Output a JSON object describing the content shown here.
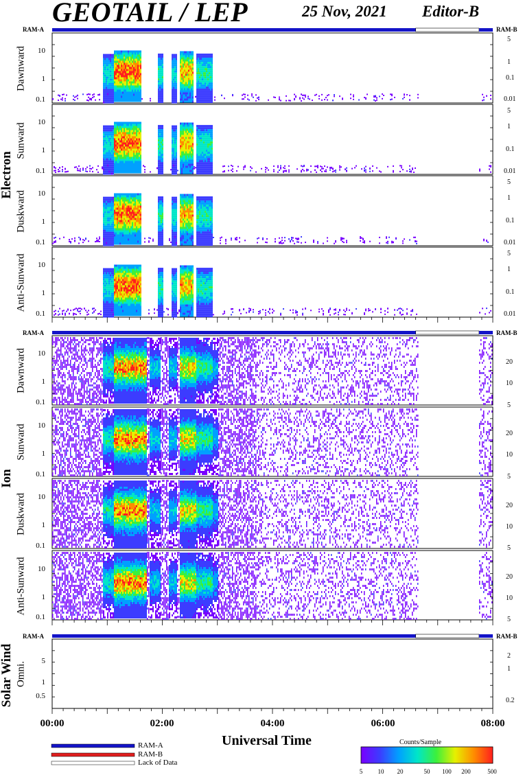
{
  "header": {
    "title": "GEOTAIL / LEP",
    "date": "25 Nov, 2021",
    "editor": "Editor-B"
  },
  "ram_labels": {
    "left": "RAM-A",
    "right": "RAM-B"
  },
  "groups": {
    "electron": "Electron",
    "ion": "Ion",
    "solar_wind": "Solar Wind"
  },
  "panel_labels": {
    "e1": "Dawnward",
    "e2": "Sunward",
    "e3": "Duskward",
    "e4": "Anti-Sunward",
    "i1": "Dawnward",
    "i2": "Sunward",
    "i3": "Duskward",
    "i4": "Anti-Sunward",
    "sw": "Omni."
  },
  "left_ticks": {
    "electron": [
      "10",
      "1",
      "0.1"
    ],
    "ion": [
      "10",
      "1",
      "0.1"
    ],
    "solar_wind": [
      "5",
      "1",
      "0.5"
    ]
  },
  "right_ticks": {
    "electron": [
      "5",
      "1",
      "0.1",
      "0.01"
    ],
    "ion": [
      "20",
      "10",
      "5"
    ],
    "solar_wind": [
      "2",
      "1",
      "0.2"
    ]
  },
  "x_axis": {
    "label": "Universal Time",
    "ticks": [
      "00:00",
      "02:00",
      "04:00",
      "06:00",
      "08:00"
    ]
  },
  "legend": {
    "ram_a": "RAM-A",
    "ram_b": "RAM-B",
    "lack": "Lack of Data"
  },
  "colorbar": {
    "title": "Counts/Sample",
    "ticks": [
      "5",
      "10",
      "20",
      "50",
      "100",
      "200",
      "500"
    ],
    "colors": [
      "#7800ff",
      "#3c3cff",
      "#00a0ff",
      "#00e6c8",
      "#3cf03c",
      "#e6f000",
      "#ff8c00",
      "#ff1e1e"
    ]
  },
  "chart_data": {
    "type": "heatmap",
    "title": "GEOTAIL / LEP",
    "xlabel": "Universal Time",
    "x_range_hours": [
      0,
      8
    ],
    "ram_status": [
      {
        "from_hour": 0.0,
        "to_hour": 6.6,
        "status": "RAM-A"
      },
      {
        "from_hour": 6.6,
        "to_hour": 7.75,
        "status": "Lack of Data"
      },
      {
        "from_hour": 7.75,
        "to_hour": 8.0,
        "status": "RAM-A"
      }
    ],
    "data_gaps_hours": [
      [
        6.65,
        7.75
      ]
    ],
    "panels": [
      {
        "group": "Electron",
        "name": "Dawnward",
        "y_log": true
      },
      {
        "group": "Electron",
        "name": "Sunward",
        "y_log": true
      },
      {
        "group": "Electron",
        "name": "Duskward",
        "y_log": true
      },
      {
        "group": "Electron",
        "name": "Anti-Sunward",
        "y_log": true
      },
      {
        "group": "Ion",
        "name": "Dawnward",
        "y_log": true
      },
      {
        "group": "Ion",
        "name": "Sunward",
        "y_log": true
      },
      {
        "group": "Ion",
        "name": "Duskward",
        "y_log": true
      },
      {
        "group": "Ion",
        "name": "Anti-Sunward",
        "y_log": true
      },
      {
        "group": "Solar Wind",
        "name": "Omni.",
        "y_log": true
      }
    ],
    "colorbar_label": "Counts/Sample",
    "colorbar_range": [
      5,
      500
    ]
  }
}
